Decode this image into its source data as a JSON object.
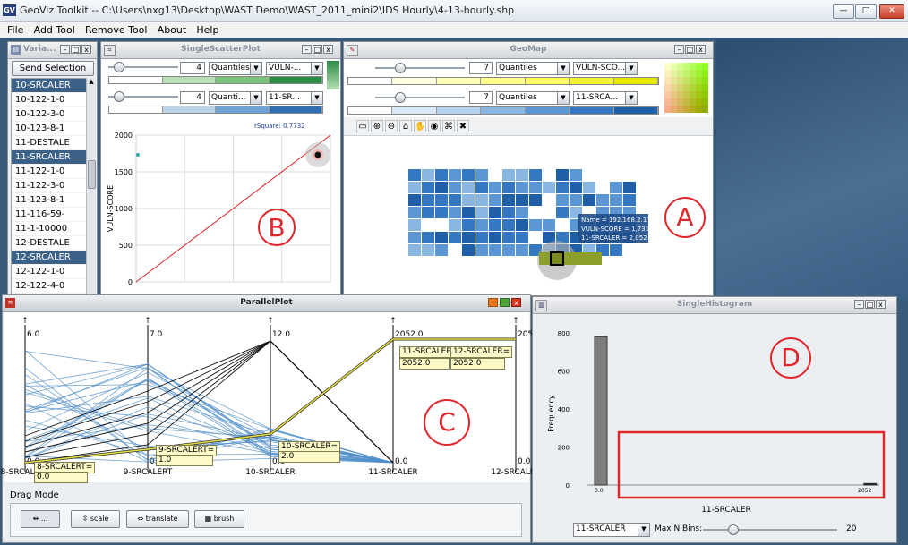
{
  "app": {
    "title": "GeoViz Toolkit -- C:\\Users\\nxg13\\Desktop\\WAST Demo\\WAST_2011_mini2\\IDS Hourly\\4-13-hourly.shp",
    "logo": "GV",
    "menu": [
      "File",
      "Add Tool",
      "Remove Tool",
      "About",
      "Help"
    ],
    "window_buttons": {
      "minimize": "—",
      "maximize": "□",
      "close": "✕"
    }
  },
  "variable_panel": {
    "title": "Varia...",
    "send_button": "Send Selection",
    "items": [
      {
        "label": "10-SRCALER",
        "selected": true
      },
      {
        "label": "10-122-1-0",
        "selected": false
      },
      {
        "label": "10-122-3-0",
        "selected": false
      },
      {
        "label": "10-123-8-1",
        "selected": false
      },
      {
        "label": "11-DESTALE",
        "selected": false
      },
      {
        "label": "11-SRCALER",
        "selected": true
      },
      {
        "label": "11-122-1-0",
        "selected": false
      },
      {
        "label": "11-122-3-0",
        "selected": false
      },
      {
        "label": "11-123-8-1",
        "selected": false
      },
      {
        "label": "11-116-59-",
        "selected": false
      },
      {
        "label": "11-1-10000",
        "selected": false
      },
      {
        "label": "12-DESTALE",
        "selected": false
      },
      {
        "label": "12-SRCALER",
        "selected": true
      },
      {
        "label": "12-122-1-0",
        "selected": false
      },
      {
        "label": "12-122-4-0",
        "selected": false
      }
    ]
  },
  "scatter": {
    "title": "SingleScatterPlot",
    "row1": {
      "classes": "4",
      "method": "Quantiles",
      "variable": "VULN-..."
    },
    "row2": {
      "classes": "4",
      "method": "Quanti...",
      "variable": "11-SR..."
    },
    "rsquare": "rSquare: 0.7732",
    "marker": "B",
    "row1_colors": [
      "#ffffff",
      "#b7dfb4",
      "#7cc47b",
      "#2a8d46"
    ],
    "row2_colors": [
      "#ffffff",
      "#bcd3ea",
      "#6fa3d3",
      "#2f6eb1"
    ]
  },
  "chart_data": [
    {
      "type": "scatter",
      "title": "rSquare: 0.7732",
      "xlabel": "",
      "ylabel": "VULN-SCORE",
      "yticks": [
        "0",
        "500",
        "1000",
        "1500",
        "2000"
      ],
      "ylim": [
        0,
        2000
      ],
      "xlim": [
        0,
        2052
      ],
      "points": [
        {
          "x": 0,
          "y": 1731
        },
        {
          "x": 2052,
          "y": 1731
        }
      ],
      "fit_line": [
        [
          0,
          0
        ],
        [
          2052,
          2000
        ]
      ],
      "grid": true
    },
    {
      "type": "bar",
      "title": "",
      "xlabel": "11-SRCALER",
      "ylabel": "Frequency",
      "yticks": [
        "0",
        "200",
        "400",
        "600",
        "800"
      ],
      "ylim": [
        0,
        800
      ],
      "xticks": [
        "0.0",
        "2052"
      ],
      "bins": [
        {
          "from": 0,
          "to": 60,
          "value": 780
        },
        {
          "from": 1980,
          "to": 2052,
          "value": 8
        }
      ],
      "grid": false
    }
  ],
  "geomap": {
    "title": "GeoMap",
    "row1": {
      "classes": "7",
      "method": "Quantiles",
      "variable": "VULN-SCO..."
    },
    "row2": {
      "classes": "7",
      "method": "Quantiles",
      "variable": "11-SRCA..."
    },
    "row1_colors": [
      "#ffffff",
      "#ffffe0",
      "#ffffb8",
      "#ffff8a",
      "#ffff5c",
      "#f3f330",
      "#e6e600"
    ],
    "row2_colors": [
      "#ffffff",
      "#d8e8f6",
      "#b6d2ee",
      "#8ab6e2",
      "#5a97d4",
      "#3478c2",
      "#1f5fa8"
    ],
    "tooltip": [
      "Name = 192.168.2.172",
      "VULN-SCORE = 1,731",
      "11-SRCALER = 2,052"
    ],
    "tools": [
      "select-tool",
      "zoom-in",
      "zoom-out",
      "home",
      "pan",
      "identify",
      "select-all",
      "clear"
    ],
    "marker": "A"
  },
  "parallel": {
    "title": "ParallelPlot",
    "axes": [
      {
        "label": "8-SRCALERT",
        "max": "6.0",
        "min": "0.0"
      },
      {
        "label": "9-SRCALERT",
        "max": "7.0",
        "min": "0.0"
      },
      {
        "label": "10-SRCALER",
        "max": "12.0",
        "min": "0.0"
      },
      {
        "label": "11-SRCALER",
        "max": "2052.0",
        "min": "0.0"
      },
      {
        "label": "12-SRCALER",
        "max": "205",
        "min": "0.0"
      }
    ],
    "tip_11_header": "11-SRCALER",
    "tip_12_header": "12-SRCALER=",
    "tip_11_value": "2052.0",
    "tip_12_value": "2052.0",
    "tip_8": "8-SRCALERT=",
    "tip_8_val": "0.0",
    "tip_9": "9-SRCALERT=",
    "tip_9_val": "1.0",
    "tip_10": "10-SRCALER=",
    "tip_10_val": "2.0",
    "drag_mode": "Drag Mode",
    "mode_buttons": [
      "...",
      "scale",
      "translate",
      "brush"
    ],
    "marker": "C"
  },
  "histogram": {
    "title": "SingleHistogram",
    "variable": "11-SRCALER",
    "max_bins_label": "Max N Bins:",
    "max_bins_value": 20,
    "slider_fraction": 0.2,
    "marker": "D"
  }
}
